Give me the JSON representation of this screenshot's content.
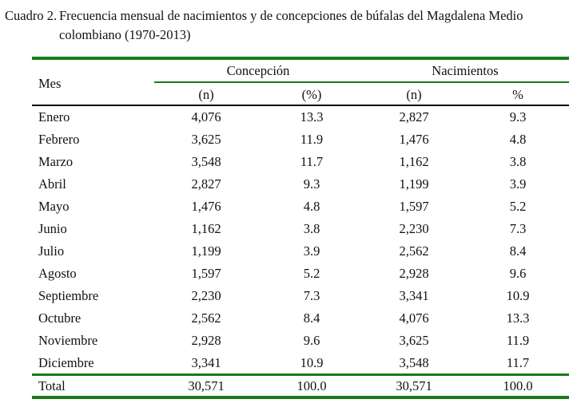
{
  "caption": {
    "label": "Cuadro 2.",
    "title": "Frecuencia mensual de nacimientos y de concepciones de búfalas del Magdalena Medio colombiano (1970-2013)"
  },
  "header": {
    "mes": "Mes",
    "groups": [
      "Concepción",
      "Nacimientos"
    ],
    "subcols": [
      "(n)",
      "(%)",
      "(n)",
      "%"
    ]
  },
  "rows": [
    {
      "mes": "Enero",
      "c_n": "4,076",
      "c_p": "13.3",
      "n_n": "2,827",
      "n_p": "9.3"
    },
    {
      "mes": "Febrero",
      "c_n": "3,625",
      "c_p": "11.9",
      "n_n": "1,476",
      "n_p": "4.8"
    },
    {
      "mes": "Marzo",
      "c_n": "3,548",
      "c_p": "11.7",
      "n_n": "1,162",
      "n_p": "3.8"
    },
    {
      "mes": "Abril",
      "c_n": "2,827",
      "c_p": "9.3",
      "n_n": "1,199",
      "n_p": "3.9"
    },
    {
      "mes": "Mayo",
      "c_n": "1,476",
      "c_p": "4.8",
      "n_n": "1,597",
      "n_p": "5.2"
    },
    {
      "mes": "Junio",
      "c_n": "1,162",
      "c_p": "3.8",
      "n_n": "2,230",
      "n_p": "7.3"
    },
    {
      "mes": "Julio",
      "c_n": "1,199",
      "c_p": "3.9",
      "n_n": "2,562",
      "n_p": "8.4"
    },
    {
      "mes": "Agosto",
      "c_n": "1,597",
      "c_p": "5.2",
      "n_n": "2,928",
      "n_p": "9.6"
    },
    {
      "mes": "Septiembre",
      "c_n": "2,230",
      "c_p": "7.3",
      "n_n": "3,341",
      "n_p": "10.9"
    },
    {
      "mes": "Octubre",
      "c_n": "2,562",
      "c_p": "8.4",
      "n_n": "4,076",
      "n_p": "13.3"
    },
    {
      "mes": "Noviembre",
      "c_n": "2,928",
      "c_p": "9.6",
      "n_n": "3,625",
      "n_p": "11.9"
    },
    {
      "mes": "Diciembre",
      "c_n": "3,341",
      "c_p": "10.9",
      "n_n": "3,548",
      "n_p": "11.7"
    }
  ],
  "total": {
    "mes": "Total",
    "c_n": "30,571",
    "c_p": "100.0",
    "n_n": "30,571",
    "n_p": "100.0"
  },
  "colors": {
    "rule_green": "#187a18",
    "rule_black": "#000000"
  }
}
